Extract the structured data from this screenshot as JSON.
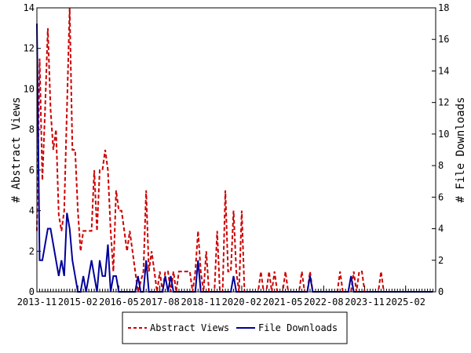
{
  "chart_data": {
    "type": "line",
    "title": "",
    "ylabel_left": "# Abstract Views",
    "ylabel_right": "# File Downloads",
    "ylim_left": [
      0,
      14
    ],
    "ylim_right": [
      0,
      18
    ],
    "yticks_left": [
      "0",
      "2",
      "4",
      "6",
      "8",
      "10",
      "12",
      "14"
    ],
    "yticks_right": [
      "0",
      "2",
      "4",
      "6",
      "8",
      "10",
      "12",
      "14",
      "16",
      "18"
    ],
    "x_start": "2013-11",
    "x_end": "2026-01",
    "xtick_labels": [
      "2013-11",
      "2015-02",
      "2016-05",
      "2017-08",
      "2018-11",
      "2020-02",
      "2021-05",
      "2022-08",
      "2023-11",
      "2025-02"
    ],
    "legend_position": "bottom",
    "grid": false,
    "series": [
      {
        "name": "Abstract Views",
        "axis": "left",
        "color": "#cc0000",
        "style": "dashed",
        "points": [
          [
            "2013-11",
            3
          ],
          [
            "2013-12",
            11.5
          ],
          [
            "2014-01",
            5.5
          ],
          [
            "2014-02",
            9
          ],
          [
            "2014-03",
            13
          ],
          [
            "2014-04",
            9
          ],
          [
            "2014-05",
            7
          ],
          [
            "2014-06",
            8
          ],
          [
            "2014-07",
            3.8
          ],
          [
            "2014-08",
            3
          ],
          [
            "2014-09",
            4
          ],
          [
            "2014-10",
            9
          ],
          [
            "2014-11",
            14
          ],
          [
            "2014-12",
            7
          ],
          [
            "2015-01",
            7
          ],
          [
            "2015-02",
            4
          ],
          [
            "2015-03",
            2
          ],
          [
            "2015-04",
            3
          ],
          [
            "2015-05",
            3
          ],
          [
            "2015-06",
            3
          ],
          [
            "2015-07",
            3
          ],
          [
            "2015-08",
            6
          ],
          [
            "2015-09",
            3
          ],
          [
            "2015-10",
            6
          ],
          [
            "2015-11",
            6
          ],
          [
            "2015-12",
            7
          ],
          [
            "2016-01",
            6
          ],
          [
            "2016-02",
            3
          ],
          [
            "2016-03",
            1
          ],
          [
            "2016-04",
            5
          ],
          [
            "2016-05",
            4
          ],
          [
            "2016-06",
            4
          ],
          [
            "2016-07",
            3
          ],
          [
            "2016-08",
            2
          ],
          [
            "2016-09",
            3
          ],
          [
            "2016-10",
            2
          ],
          [
            "2016-11",
            1
          ],
          [
            "2016-12",
            0
          ],
          [
            "2017-01",
            0.5
          ],
          [
            "2017-02",
            1
          ],
          [
            "2017-03",
            5
          ],
          [
            "2017-04",
            1
          ],
          [
            "2017-05",
            2
          ],
          [
            "2017-06",
            1
          ],
          [
            "2017-07",
            0
          ],
          [
            "2017-08",
            1
          ],
          [
            "2017-09",
            0
          ],
          [
            "2017-10",
            1
          ],
          [
            "2017-11",
            1
          ],
          [
            "2017-12",
            0
          ],
          [
            "2018-01",
            1
          ],
          [
            "2018-02",
            0
          ],
          [
            "2018-03",
            1
          ],
          [
            "2018-04",
            1
          ],
          [
            "2018-05",
            1
          ],
          [
            "2018-06",
            1
          ],
          [
            "2018-07",
            1
          ],
          [
            "2018-08",
            0
          ],
          [
            "2018-09",
            1
          ],
          [
            "2018-10",
            3
          ],
          [
            "2018-11",
            1
          ],
          [
            "2018-12",
            0
          ],
          [
            "2019-01",
            2
          ],
          [
            "2019-02",
            0
          ],
          [
            "2019-03",
            0
          ],
          [
            "2019-04",
            0
          ],
          [
            "2019-05",
            3
          ],
          [
            "2019-06",
            0
          ],
          [
            "2019-07",
            0
          ],
          [
            "2019-08",
            5
          ],
          [
            "2019-09",
            1
          ],
          [
            "2019-10",
            1
          ],
          [
            "2019-11",
            4
          ],
          [
            "2019-12",
            1
          ],
          [
            "2020-01",
            0
          ],
          [
            "2020-02",
            4
          ],
          [
            "2020-03",
            0
          ],
          [
            "2020-04",
            0
          ],
          [
            "2020-05",
            0
          ],
          [
            "2020-06",
            0
          ],
          [
            "2020-07",
            0
          ],
          [
            "2020-08",
            0
          ],
          [
            "2020-09",
            1
          ],
          [
            "2020-10",
            0
          ],
          [
            "2020-11",
            0
          ],
          [
            "2020-12",
            1
          ],
          [
            "2021-01",
            0
          ],
          [
            "2021-02",
            1
          ],
          [
            "2021-03",
            0
          ],
          [
            "2021-04",
            0
          ],
          [
            "2021-05",
            0
          ],
          [
            "2021-06",
            1
          ],
          [
            "2021-07",
            0
          ],
          [
            "2021-08",
            0
          ],
          [
            "2021-09",
            0
          ],
          [
            "2021-10",
            0
          ],
          [
            "2021-11",
            0
          ],
          [
            "2021-12",
            1
          ],
          [
            "2022-01",
            0
          ],
          [
            "2022-02",
            0
          ],
          [
            "2022-03",
            1
          ],
          [
            "2022-04",
            0
          ],
          [
            "2022-05",
            0
          ],
          [
            "2022-06",
            0
          ],
          [
            "2022-07",
            0
          ],
          [
            "2022-08",
            0
          ],
          [
            "2022-09",
            0
          ],
          [
            "2022-10",
            0
          ],
          [
            "2022-11",
            0
          ],
          [
            "2022-12",
            0
          ],
          [
            "2023-01",
            0
          ],
          [
            "2023-02",
            1
          ],
          [
            "2023-03",
            0
          ],
          [
            "2023-04",
            0
          ],
          [
            "2023-05",
            0
          ],
          [
            "2023-06",
            0
          ],
          [
            "2023-07",
            1
          ],
          [
            "2023-08",
            0
          ],
          [
            "2023-09",
            1
          ],
          [
            "2023-10",
            1
          ],
          [
            "2023-11",
            0
          ],
          [
            "2023-12",
            0
          ],
          [
            "2024-01",
            0
          ],
          [
            "2024-02",
            0
          ],
          [
            "2024-03",
            0
          ],
          [
            "2024-04",
            0
          ],
          [
            "2024-05",
            1
          ],
          [
            "2024-06",
            0
          ],
          [
            "2024-07",
            0
          ],
          [
            "2024-08",
            0
          ],
          [
            "2024-09",
            0
          ],
          [
            "2024-10",
            0
          ],
          [
            "2024-11",
            0
          ],
          [
            "2024-12",
            0
          ],
          [
            "2025-01",
            0
          ],
          [
            "2025-02",
            0
          ],
          [
            "2025-03",
            0
          ],
          [
            "2025-04",
            0
          ],
          [
            "2025-05",
            0
          ],
          [
            "2025-06",
            0
          ],
          [
            "2025-07",
            0
          ],
          [
            "2025-08",
            0
          ],
          [
            "2025-09",
            0
          ],
          [
            "2025-10",
            0
          ],
          [
            "2025-11",
            0
          ],
          [
            "2025-12",
            0
          ]
        ]
      },
      {
        "name": "File Downloads",
        "axis": "right",
        "color": "#000099",
        "style": "solid",
        "points": [
          [
            "2013-11",
            17
          ],
          [
            "2013-12",
            2
          ],
          [
            "2014-01",
            2
          ],
          [
            "2014-02",
            3
          ],
          [
            "2014-03",
            4
          ],
          [
            "2014-04",
            4
          ],
          [
            "2014-05",
            3
          ],
          [
            "2014-06",
            2
          ],
          [
            "2014-07",
            1
          ],
          [
            "2014-08",
            2
          ],
          [
            "2014-09",
            1
          ],
          [
            "2014-10",
            5
          ],
          [
            "2014-11",
            4
          ],
          [
            "2014-12",
            2
          ],
          [
            "2015-01",
            1
          ],
          [
            "2015-02",
            0
          ],
          [
            "2015-03",
            0
          ],
          [
            "2015-04",
            1
          ],
          [
            "2015-05",
            0
          ],
          [
            "2015-06",
            1
          ],
          [
            "2015-07",
            2
          ],
          [
            "2015-08",
            1
          ],
          [
            "2015-09",
            0
          ],
          [
            "2015-10",
            2
          ],
          [
            "2015-11",
            1
          ],
          [
            "2015-12",
            1
          ],
          [
            "2016-01",
            3
          ],
          [
            "2016-02",
            0
          ],
          [
            "2016-03",
            1
          ],
          [
            "2016-04",
            1
          ],
          [
            "2016-05",
            0
          ],
          [
            "2016-06",
            0
          ],
          [
            "2016-07",
            0
          ],
          [
            "2016-08",
            0
          ],
          [
            "2016-09",
            0
          ],
          [
            "2016-10",
            0
          ],
          [
            "2016-11",
            0
          ],
          [
            "2016-12",
            1
          ],
          [
            "2017-01",
            0
          ],
          [
            "2017-02",
            0
          ],
          [
            "2017-03",
            2
          ],
          [
            "2017-04",
            0
          ],
          [
            "2017-05",
            0
          ],
          [
            "2017-06",
            0
          ],
          [
            "2017-07",
            0
          ],
          [
            "2017-08",
            0
          ],
          [
            "2017-09",
            0
          ],
          [
            "2017-10",
            1
          ],
          [
            "2017-11",
            0
          ],
          [
            "2017-12",
            1
          ],
          [
            "2018-01",
            0
          ],
          [
            "2018-02",
            0
          ],
          [
            "2018-03",
            0
          ],
          [
            "2018-04",
            0
          ],
          [
            "2018-05",
            0
          ],
          [
            "2018-06",
            0
          ],
          [
            "2018-07",
            0
          ],
          [
            "2018-08",
            0
          ],
          [
            "2018-09",
            0
          ],
          [
            "2018-10",
            2
          ],
          [
            "2018-11",
            0
          ],
          [
            "2018-12",
            0
          ],
          [
            "2019-01",
            0
          ],
          [
            "2019-02",
            0
          ],
          [
            "2019-03",
            0
          ],
          [
            "2019-04",
            0
          ],
          [
            "2019-05",
            0
          ],
          [
            "2019-06",
            0
          ],
          [
            "2019-07",
            0
          ],
          [
            "2019-08",
            0
          ],
          [
            "2019-09",
            0
          ],
          [
            "2019-10",
            0
          ],
          [
            "2019-11",
            1
          ],
          [
            "2019-12",
            0
          ],
          [
            "2020-01",
            0
          ],
          [
            "2020-02",
            0
          ],
          [
            "2020-03",
            0
          ],
          [
            "2020-04",
            0
          ],
          [
            "2020-05",
            0
          ],
          [
            "2020-06",
            0
          ],
          [
            "2020-07",
            0
          ],
          [
            "2020-08",
            0
          ],
          [
            "2020-09",
            0
          ],
          [
            "2020-10",
            0
          ],
          [
            "2020-11",
            0
          ],
          [
            "2020-12",
            0
          ],
          [
            "2021-01",
            0
          ],
          [
            "2021-02",
            0
          ],
          [
            "2021-03",
            0
          ],
          [
            "2021-04",
            0
          ],
          [
            "2021-05",
            0
          ],
          [
            "2021-06",
            0
          ],
          [
            "2021-07",
            0
          ],
          [
            "2021-08",
            0
          ],
          [
            "2021-09",
            0
          ],
          [
            "2021-10",
            0
          ],
          [
            "2021-11",
            0
          ],
          [
            "2021-12",
            0
          ],
          [
            "2022-01",
            0
          ],
          [
            "2022-02",
            0
          ],
          [
            "2022-03",
            1
          ],
          [
            "2022-04",
            0
          ],
          [
            "2022-05",
            0
          ],
          [
            "2022-06",
            0
          ],
          [
            "2022-07",
            0
          ],
          [
            "2022-08",
            0
          ],
          [
            "2022-09",
            0
          ],
          [
            "2022-10",
            0
          ],
          [
            "2022-11",
            0
          ],
          [
            "2022-12",
            0
          ],
          [
            "2023-01",
            0
          ],
          [
            "2023-02",
            0
          ],
          [
            "2023-03",
            0
          ],
          [
            "2023-04",
            0
          ],
          [
            "2023-05",
            0
          ],
          [
            "2023-06",
            1
          ],
          [
            "2023-07",
            0
          ],
          [
            "2023-08",
            0
          ],
          [
            "2023-09",
            0
          ],
          [
            "2023-10",
            0
          ],
          [
            "2023-11",
            0
          ],
          [
            "2023-12",
            0
          ],
          [
            "2024-01",
            0
          ],
          [
            "2024-02",
            0
          ],
          [
            "2024-03",
            0
          ],
          [
            "2024-04",
            0
          ],
          [
            "2024-05",
            0
          ],
          [
            "2024-06",
            0
          ],
          [
            "2024-07",
            0
          ],
          [
            "2024-08",
            0
          ],
          [
            "2024-09",
            0
          ],
          [
            "2024-10",
            0
          ],
          [
            "2024-11",
            0
          ],
          [
            "2024-12",
            0
          ],
          [
            "2025-01",
            0
          ],
          [
            "2025-02",
            0
          ],
          [
            "2025-03",
            0
          ],
          [
            "2025-04",
            0
          ],
          [
            "2025-05",
            0
          ],
          [
            "2025-06",
            0
          ],
          [
            "2025-07",
            0
          ],
          [
            "2025-08",
            0
          ],
          [
            "2025-09",
            0
          ],
          [
            "2025-10",
            0
          ],
          [
            "2025-11",
            0
          ],
          [
            "2025-12",
            0
          ]
        ]
      }
    ]
  }
}
